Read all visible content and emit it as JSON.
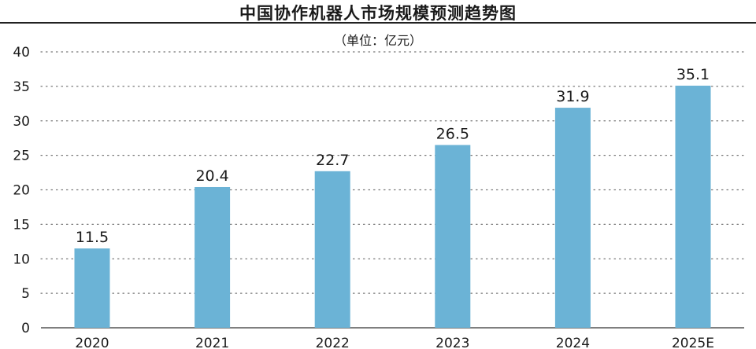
{
  "title": "中国协作机器人市场规模预测趋势图",
  "unit": "（单位：亿元）",
  "colors": {
    "bar": "#6bb3d6",
    "grid": "#777777",
    "axis": "#333333",
    "text": "#1a1a1a"
  },
  "chart_data": {
    "type": "bar",
    "title": "中国协作机器人市场规模预测趋势图",
    "subtitle": "（单位：亿元）",
    "categories": [
      "2020",
      "2021",
      "2022",
      "2023",
      "2024",
      "2025E"
    ],
    "values": [
      11.5,
      20.4,
      22.7,
      26.5,
      31.9,
      35.1
    ],
    "data_labels": [
      "11.5",
      "20.4",
      "22.7",
      "26.5",
      "31.9",
      "35.1"
    ],
    "xlabel": "",
    "ylabel": "",
    "ylim": [
      0,
      40
    ],
    "yticks": [
      "0",
      "5",
      "10",
      "15",
      "20",
      "25",
      "30",
      "35",
      "40"
    ],
    "grid": true,
    "legend": "none"
  }
}
